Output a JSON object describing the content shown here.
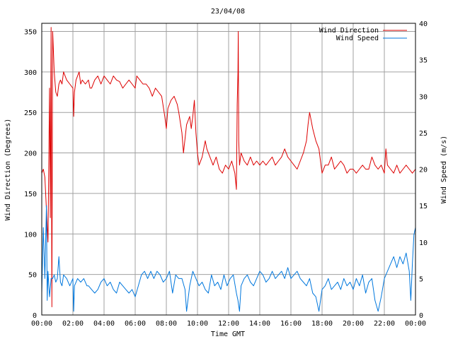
{
  "chart_data": {
    "type": "line",
    "title": "23/04/08",
    "xlabel": "Time GMT",
    "ylabel": "Wind Direction (Degrees)",
    "y2label": "Wind Speed (m/s)",
    "x_ticks": [
      "00:00",
      "02:00",
      "04:00",
      "06:00",
      "08:00",
      "10:00",
      "12:00",
      "14:00",
      "16:00",
      "18:00",
      "20:00",
      "22:00",
      "00:00"
    ],
    "xlim": [
      0,
      24
    ],
    "ylim": [
      0,
      360
    ],
    "y_ticks": [
      0,
      50,
      100,
      150,
      200,
      250,
      300,
      350
    ],
    "y2lim": [
      0,
      40
    ],
    "y2_ticks": [
      0,
      5,
      10,
      15,
      20,
      25,
      30,
      35,
      40
    ],
    "grid": true,
    "legend_position": "top-right",
    "series": [
      {
        "name": "Wind Direction",
        "axis": "left",
        "color": "#dd0000",
        "points": [
          [
            0.0,
            175
          ],
          [
            0.1,
            180
          ],
          [
            0.2,
            170
          ],
          [
            0.3,
            130
          ],
          [
            0.4,
            90
          ],
          [
            0.5,
            280
          ],
          [
            0.55,
            120
          ],
          [
            0.6,
            355
          ],
          [
            0.65,
            10
          ],
          [
            0.7,
            350
          ],
          [
            0.8,
            300
          ],
          [
            0.9,
            275
          ],
          [
            1.0,
            270
          ],
          [
            1.1,
            285
          ],
          [
            1.2,
            290
          ],
          [
            1.3,
            285
          ],
          [
            1.4,
            300
          ],
          [
            1.5,
            295
          ],
          [
            1.6,
            290
          ],
          [
            1.8,
            285
          ],
          [
            2.0,
            280
          ],
          [
            2.05,
            245
          ],
          [
            2.1,
            275
          ],
          [
            2.2,
            290
          ],
          [
            2.3,
            295
          ],
          [
            2.4,
            300
          ],
          [
            2.5,
            285
          ],
          [
            2.6,
            290
          ],
          [
            2.8,
            285
          ],
          [
            3.0,
            290
          ],
          [
            3.1,
            280
          ],
          [
            3.2,
            280
          ],
          [
            3.4,
            290
          ],
          [
            3.6,
            295
          ],
          [
            3.8,
            285
          ],
          [
            4.0,
            295
          ],
          [
            4.2,
            290
          ],
          [
            4.4,
            285
          ],
          [
            4.6,
            295
          ],
          [
            4.8,
            290
          ],
          [
            5.0,
            288
          ],
          [
            5.2,
            280
          ],
          [
            5.4,
            285
          ],
          [
            5.6,
            290
          ],
          [
            5.8,
            285
          ],
          [
            6.0,
            280
          ],
          [
            6.1,
            295
          ],
          [
            6.3,
            290
          ],
          [
            6.5,
            285
          ],
          [
            6.7,
            285
          ],
          [
            6.9,
            280
          ],
          [
            7.1,
            270
          ],
          [
            7.3,
            280
          ],
          [
            7.5,
            275
          ],
          [
            7.7,
            270
          ],
          [
            7.9,
            245
          ],
          [
            8.0,
            230
          ],
          [
            8.1,
            255
          ],
          [
            8.3,
            265
          ],
          [
            8.5,
            270
          ],
          [
            8.7,
            260
          ],
          [
            8.8,
            250
          ],
          [
            9.0,
            225
          ],
          [
            9.1,
            200
          ],
          [
            9.3,
            235
          ],
          [
            9.5,
            245
          ],
          [
            9.6,
            230
          ],
          [
            9.7,
            245
          ],
          [
            9.8,
            265
          ],
          [
            9.9,
            225
          ],
          [
            10.0,
            200
          ],
          [
            10.1,
            185
          ],
          [
            10.3,
            195
          ],
          [
            10.5,
            215
          ],
          [
            10.6,
            205
          ],
          [
            10.8,
            195
          ],
          [
            11.0,
            185
          ],
          [
            11.2,
            195
          ],
          [
            11.4,
            180
          ],
          [
            11.6,
            175
          ],
          [
            11.8,
            185
          ],
          [
            12.0,
            180
          ],
          [
            12.2,
            190
          ],
          [
            12.4,
            175
          ],
          [
            12.5,
            155
          ],
          [
            12.55,
            260
          ],
          [
            12.6,
            300
          ],
          [
            12.62,
            350
          ],
          [
            12.65,
            215
          ],
          [
            12.7,
            185
          ],
          [
            12.8,
            200
          ],
          [
            13.0,
            190
          ],
          [
            13.2,
            185
          ],
          [
            13.4,
            195
          ],
          [
            13.6,
            185
          ],
          [
            13.8,
            190
          ],
          [
            14.0,
            185
          ],
          [
            14.2,
            190
          ],
          [
            14.4,
            185
          ],
          [
            14.6,
            190
          ],
          [
            14.8,
            195
          ],
          [
            15.0,
            185
          ],
          [
            15.2,
            190
          ],
          [
            15.4,
            195
          ],
          [
            15.6,
            205
          ],
          [
            15.8,
            195
          ],
          [
            16.0,
            190
          ],
          [
            16.2,
            185
          ],
          [
            16.4,
            180
          ],
          [
            16.6,
            190
          ],
          [
            16.8,
            200
          ],
          [
            17.0,
            215
          ],
          [
            17.1,
            235
          ],
          [
            17.2,
            250
          ],
          [
            17.4,
            230
          ],
          [
            17.6,
            215
          ],
          [
            17.8,
            205
          ],
          [
            18.0,
            175
          ],
          [
            18.2,
            185
          ],
          [
            18.4,
            185
          ],
          [
            18.6,
            195
          ],
          [
            18.8,
            180
          ],
          [
            19.0,
            185
          ],
          [
            19.2,
            190
          ],
          [
            19.4,
            185
          ],
          [
            19.6,
            175
          ],
          [
            19.8,
            180
          ],
          [
            20.0,
            180
          ],
          [
            20.2,
            175
          ],
          [
            20.4,
            180
          ],
          [
            20.6,
            185
          ],
          [
            20.8,
            180
          ],
          [
            21.0,
            180
          ],
          [
            21.2,
            195
          ],
          [
            21.4,
            185
          ],
          [
            21.6,
            180
          ],
          [
            21.8,
            185
          ],
          [
            22.0,
            175
          ],
          [
            22.1,
            205
          ],
          [
            22.2,
            185
          ],
          [
            22.4,
            180
          ],
          [
            22.6,
            175
          ],
          [
            22.8,
            185
          ],
          [
            23.0,
            175
          ],
          [
            23.2,
            180
          ],
          [
            23.4,
            185
          ],
          [
            23.6,
            180
          ],
          [
            23.8,
            175
          ],
          [
            24.0,
            180
          ]
        ]
      },
      {
        "name": "Wind Speed",
        "axis": "right",
        "color": "#0077dd",
        "points": [
          [
            0.0,
            3
          ],
          [
            0.1,
            12
          ],
          [
            0.2,
            5
          ],
          [
            0.3,
            15
          ],
          [
            0.35,
            2
          ],
          [
            0.4,
            6
          ],
          [
            0.5,
            2.5
          ],
          [
            0.6,
            5
          ],
          [
            0.7,
            5
          ],
          [
            0.8,
            5.5
          ],
          [
            0.9,
            4.5
          ],
          [
            1.0,
            5
          ],
          [
            1.1,
            8
          ],
          [
            1.2,
            4.5
          ],
          [
            1.3,
            4
          ],
          [
            1.4,
            5.5
          ],
          [
            1.6,
            5
          ],
          [
            1.8,
            4
          ],
          [
            2.0,
            5
          ],
          [
            2.05,
            0.5
          ],
          [
            2.1,
            4
          ],
          [
            2.3,
            5
          ],
          [
            2.5,
            4.5
          ],
          [
            2.7,
            5
          ],
          [
            2.9,
            4
          ],
          [
            3.0,
            4
          ],
          [
            3.2,
            3.5
          ],
          [
            3.4,
            3
          ],
          [
            3.6,
            3.5
          ],
          [
            3.8,
            4.5
          ],
          [
            4.0,
            5
          ],
          [
            4.2,
            4
          ],
          [
            4.4,
            4.5
          ],
          [
            4.6,
            3.5
          ],
          [
            4.8,
            3
          ],
          [
            5.0,
            4.5
          ],
          [
            5.2,
            4
          ],
          [
            5.4,
            3.5
          ],
          [
            5.6,
            3
          ],
          [
            5.8,
            3.5
          ],
          [
            6.0,
            2.5
          ],
          [
            6.2,
            4
          ],
          [
            6.4,
            5.5
          ],
          [
            6.6,
            6
          ],
          [
            6.8,
            5
          ],
          [
            7.0,
            6
          ],
          [
            7.2,
            5
          ],
          [
            7.4,
            6
          ],
          [
            7.6,
            5.5
          ],
          [
            7.8,
            4.5
          ],
          [
            8.0,
            5
          ],
          [
            8.2,
            6
          ],
          [
            8.4,
            3
          ],
          [
            8.6,
            5.5
          ],
          [
            8.8,
            5
          ],
          [
            9.0,
            5
          ],
          [
            9.2,
            3.5
          ],
          [
            9.3,
            0.5
          ],
          [
            9.5,
            4
          ],
          [
            9.7,
            6
          ],
          [
            9.9,
            5
          ],
          [
            10.1,
            4
          ],
          [
            10.3,
            4.5
          ],
          [
            10.5,
            3.5
          ],
          [
            10.7,
            3
          ],
          [
            10.9,
            5.5
          ],
          [
            11.1,
            4
          ],
          [
            11.3,
            4.5
          ],
          [
            11.5,
            3.5
          ],
          [
            11.7,
            5.5
          ],
          [
            11.9,
            4
          ],
          [
            12.1,
            5
          ],
          [
            12.3,
            5.5
          ],
          [
            12.5,
            3
          ],
          [
            12.6,
            2
          ],
          [
            12.7,
            0.5
          ],
          [
            12.8,
            4
          ],
          [
            13.0,
            5
          ],
          [
            13.2,
            5.5
          ],
          [
            13.4,
            4.5
          ],
          [
            13.6,
            4
          ],
          [
            13.8,
            5
          ],
          [
            14.0,
            6
          ],
          [
            14.2,
            5.5
          ],
          [
            14.4,
            4.5
          ],
          [
            14.6,
            5
          ],
          [
            14.8,
            6
          ],
          [
            15.0,
            5
          ],
          [
            15.2,
            5.5
          ],
          [
            15.4,
            6
          ],
          [
            15.6,
            5
          ],
          [
            15.8,
            6.5
          ],
          [
            16.0,
            5
          ],
          [
            16.2,
            5.5
          ],
          [
            16.4,
            6
          ],
          [
            16.6,
            5
          ],
          [
            16.8,
            4.5
          ],
          [
            17.0,
            4
          ],
          [
            17.2,
            5
          ],
          [
            17.4,
            3
          ],
          [
            17.6,
            2.5
          ],
          [
            17.8,
            0.5
          ],
          [
            18.0,
            3.5
          ],
          [
            18.2,
            4
          ],
          [
            18.4,
            5
          ],
          [
            18.6,
            3.5
          ],
          [
            18.8,
            4
          ],
          [
            19.0,
            4.5
          ],
          [
            19.2,
            3.5
          ],
          [
            19.4,
            5
          ],
          [
            19.6,
            4
          ],
          [
            19.8,
            4.5
          ],
          [
            20.0,
            3.5
          ],
          [
            20.2,
            5
          ],
          [
            20.4,
            4
          ],
          [
            20.6,
            5.5
          ],
          [
            20.8,
            3
          ],
          [
            21.0,
            4.5
          ],
          [
            21.2,
            5
          ],
          [
            21.4,
            2
          ],
          [
            21.6,
            0.5
          ],
          [
            21.8,
            2.5
          ],
          [
            22.0,
            5
          ],
          [
            22.2,
            6
          ],
          [
            22.4,
            7
          ],
          [
            22.6,
            8
          ],
          [
            22.8,
            6.5
          ],
          [
            23.0,
            8
          ],
          [
            23.2,
            7
          ],
          [
            23.4,
            8.5
          ],
          [
            23.6,
            6
          ],
          [
            23.7,
            2
          ],
          [
            23.8,
            7
          ],
          [
            23.9,
            11
          ],
          [
            24.0,
            12
          ]
        ]
      }
    ]
  }
}
